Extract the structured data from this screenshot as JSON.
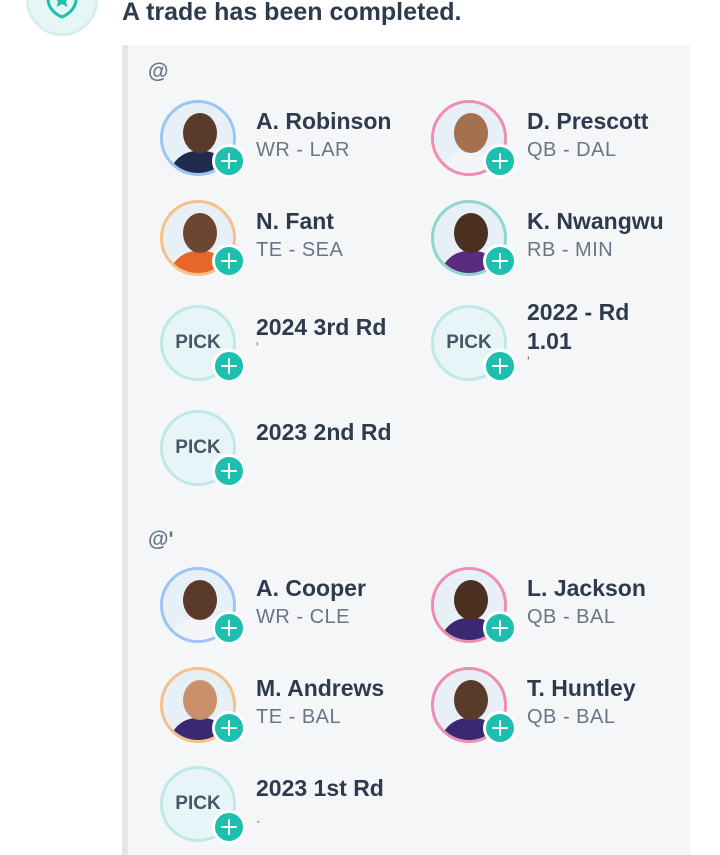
{
  "header": {
    "title": "A trade has been completed.",
    "badge_icon": "shield-star-icon",
    "badge_color": "#1dbfae"
  },
  "teams": [
    {
      "handle": "@",
      "assets": [
        {
          "type": "player",
          "name": "A. Robinson",
          "position": "WR - LAR",
          "ring": "#9cc5f5",
          "jersey": "#1f2b4d",
          "skin": "#5a3b2a"
        },
        {
          "type": "player",
          "name": "D. Prescott",
          "position": "QB - DAL",
          "ring": "#f08db0",
          "jersey": "#f2f4f7",
          "skin": "#a5704e"
        },
        {
          "type": "player",
          "name": "N. Fant",
          "position": "TE - SEA",
          "ring": "#f7c08a",
          "jersey": "#e5682a",
          "skin": "#6b4631"
        },
        {
          "type": "player",
          "name": "K. Nwangwu",
          "position": "RB - MIN",
          "ring": "#8fd6cf",
          "jersey": "#5b2b82",
          "skin": "#4b3022"
        },
        {
          "type": "pick",
          "label": "PICK",
          "name": "2024 3rd Rd",
          "detail": "'"
        },
        {
          "type": "pick",
          "label": "PICK",
          "name": "2022 - Rd 1.01",
          "detail": "'"
        },
        {
          "type": "pick",
          "label": "PICK",
          "name": "2023 2nd Rd"
        }
      ]
    },
    {
      "handle": "@'",
      "assets": [
        {
          "type": "player",
          "name": "A. Cooper",
          "position": "WR - CLE",
          "ring": "#9cc5f5",
          "jersey": "#f2f4f7",
          "skin": "#5a3b2a"
        },
        {
          "type": "player",
          "name": "L. Jackson",
          "position": "QB - BAL",
          "ring": "#f08db0",
          "jersey": "#3a2870",
          "skin": "#4b3022"
        },
        {
          "type": "player",
          "name": "M. Andrews",
          "position": "TE - BAL",
          "ring": "#f7c08a",
          "jersey": "#3a2870",
          "skin": "#c9906a"
        },
        {
          "type": "player",
          "name": "T. Huntley",
          "position": "QB - BAL",
          "ring": "#f08db0",
          "jersey": "#3a2870",
          "skin": "#5a3b2a"
        },
        {
          "type": "pick",
          "label": "PICK",
          "name": "2023 1st Rd",
          "detail": "`"
        }
      ]
    }
  ],
  "icons": {
    "add": "plus-icon",
    "player": "player-headshot"
  }
}
